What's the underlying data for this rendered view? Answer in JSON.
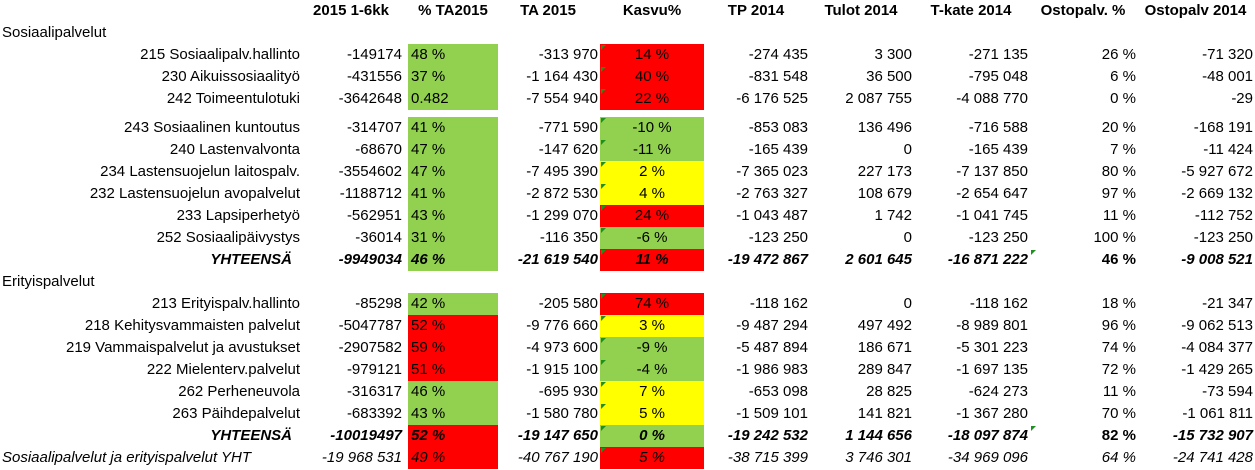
{
  "headers": [
    "2015 1-6kk",
    "% TA2015",
    "TA 2015",
    "Kasvu%",
    "TP 2014",
    "Tulot 2014",
    "T-kate 2014",
    "Ostopalv. %",
    "Ostopalv 2014"
  ],
  "colors": {
    "green": "#92d050",
    "red": "#ff0000",
    "yellow": "#ffff00"
  },
  "sections": [
    {
      "title": "Sosiaalipalvelut",
      "rows": [
        {
          "label": "215 Sosiaalipalv.hallinto",
          "v2015": "-149174",
          "pct_ta": "48 %",
          "pct_color": "green",
          "ta2015": "-313 970",
          "kasvu": "14 %",
          "kasvu_color": "red",
          "tp2014": "-274 435",
          "tulot": "3 300",
          "tkate": "-271 135",
          "ostopct": "26 %",
          "ostopalv": "-71 320"
        },
        {
          "label": "230 Aikuissosiaalityö",
          "v2015": "-431556",
          "pct_ta": "37 %",
          "pct_color": "green",
          "ta2015": "-1 164 430",
          "kasvu": "40 %",
          "kasvu_color": "red",
          "tp2014": "-831 548",
          "tulot": "36 500",
          "tkate": "-795 048",
          "ostopct": "6 %",
          "ostopalv": "-48 001"
        },
        {
          "label": "242 Toimeentulotuki",
          "v2015": "-3642648",
          "pct_ta": "0.482",
          "pct_color": "green",
          "ta2015": "-7 554 940",
          "kasvu": "22 %",
          "kasvu_color": "red",
          "tp2014": "-6 176 525",
          "tulot": "2 087 755",
          "tkate": "-4 088 770",
          "ostopct": "0 %",
          "ostopalv": "-29"
        },
        {
          "label": "243 Sosiaalinen kuntoutus",
          "v2015": "-314707",
          "pct_ta": "41 %",
          "pct_color": "green",
          "ta2015": "-771 590",
          "kasvu": "-10 %",
          "kasvu_color": "green",
          "tp2014": "-853 083",
          "tulot": "136 496",
          "tkate": "-716 588",
          "ostopct": "20 %",
          "ostopalv": "-168 191"
        },
        {
          "label": "240 Lastenvalvonta",
          "v2015": "-68670",
          "pct_ta": "47 %",
          "pct_color": "green",
          "ta2015": "-147 620",
          "kasvu": "-11 %",
          "kasvu_color": "green",
          "tp2014": "-165 439",
          "tulot": "0",
          "tkate": "-165 439",
          "ostopct": "7 %",
          "ostopalv": "-11 424"
        },
        {
          "label": "234 Lastensuojelun laitospalv.",
          "v2015": "-3554602",
          "pct_ta": "47 %",
          "pct_color": "green",
          "ta2015": "-7 495 390",
          "kasvu": "2 %",
          "kasvu_color": "yellow",
          "tp2014": "-7 365 023",
          "tulot": "227 173",
          "tkate": "-7 137 850",
          "ostopct": "80 %",
          "ostopalv": "-5 927 672"
        },
        {
          "label": "232 Lastensuojelun avopalvelut",
          "v2015": "-1188712",
          "pct_ta": "41 %",
          "pct_color": "green",
          "ta2015": "-2 872 530",
          "kasvu": "4 %",
          "kasvu_color": "yellow",
          "tp2014": "-2 763 327",
          "tulot": "108 679",
          "tkate": "-2 654 647",
          "ostopct": "97 %",
          "ostopalv": "-2 669 132"
        },
        {
          "label": "233 Lapsiperhetyö",
          "v2015": "-562951",
          "pct_ta": "43 %",
          "pct_color": "green",
          "ta2015": "-1 299 070",
          "kasvu": "24 %",
          "kasvu_color": "red",
          "tp2014": "-1 043 487",
          "tulot": "1 742",
          "tkate": "-1 041 745",
          "ostopct": "11 %",
          "ostopalv": "-112 752"
        },
        {
          "label": "252 Sosiaalipäivystys",
          "v2015": "-36014",
          "pct_ta": "31 %",
          "pct_color": "green",
          "ta2015": "-116 350",
          "kasvu": "-6 %",
          "kasvu_color": "green",
          "tp2014": "-123 250",
          "tulot": "0",
          "tkate": "-123 250",
          "ostopct": "100 %",
          "ostopalv": "-123 250"
        }
      ],
      "total": {
        "label": "YHTEENSÄ",
        "v2015": "-9949034",
        "pct_ta": "46 %",
        "pct_color": "green",
        "ta2015": "-21 619 540",
        "kasvu": "11 %",
        "kasvu_color": "red",
        "tp2014": "-19 472 867",
        "tulot": "2 601 645",
        "tkate": "-16 871 222",
        "ostopct": "46 %",
        "ostopalv": "-9 008 521"
      }
    },
    {
      "title": "Erityispalvelut",
      "rows": [
        {
          "label": "213 Erityispalv.hallinto",
          "v2015": "-85298",
          "pct_ta": "42 %",
          "pct_color": "green",
          "ta2015": "-205 580",
          "kasvu": "74 %",
          "kasvu_color": "red",
          "tp2014": "-118 162",
          "tulot": "0",
          "tkate": "-118 162",
          "ostopct": "18 %",
          "ostopalv": "-21 347"
        },
        {
          "label": "218 Kehitysvammaisten palvelut",
          "v2015": "-5047787",
          "pct_ta": "52 %",
          "pct_color": "red",
          "ta2015": "-9 776 660",
          "kasvu": "3 %",
          "kasvu_color": "yellow",
          "tp2014": "-9 487 294",
          "tulot": "497 492",
          "tkate": "-8 989 801",
          "ostopct": "96 %",
          "ostopalv": "-9 062 513"
        },
        {
          "label": "219 Vammaispalvelut ja avustukset",
          "v2015": "-2907582",
          "pct_ta": "59 %",
          "pct_color": "red",
          "ta2015": "-4 973 600",
          "kasvu": "-9 %",
          "kasvu_color": "green",
          "tp2014": "-5 487 894",
          "tulot": "186 671",
          "tkate": "-5 301 223",
          "ostopct": "74 %",
          "ostopalv": "-4 084 377"
        },
        {
          "label": "222 Mielenterv.palvelut",
          "v2015": "-979121",
          "pct_ta": "51 %",
          "pct_color": "red",
          "ta2015": "-1 915 100",
          "kasvu": "-4 %",
          "kasvu_color": "green",
          "tp2014": "-1 986 983",
          "tulot": "289 847",
          "tkate": "-1 697 135",
          "ostopct": "72 %",
          "ostopalv": "-1 429 265"
        },
        {
          "label": "262 Perheneuvola",
          "v2015": "-316317",
          "pct_ta": "46 %",
          "pct_color": "green",
          "ta2015": "-695 930",
          "kasvu": "7 %",
          "kasvu_color": "yellow",
          "tp2014": "-653 098",
          "tulot": "28 825",
          "tkate": "-624 273",
          "ostopct": "11 %",
          "ostopalv": "-73 594"
        },
        {
          "label": "263 Päihdepalvelut",
          "v2015": "-683392",
          "pct_ta": "43 %",
          "pct_color": "green",
          "ta2015": "-1 580 780",
          "kasvu": "5 %",
          "kasvu_color": "yellow",
          "tp2014": "-1 509 101",
          "tulot": "141 821",
          "tkate": "-1 367 280",
          "ostopct": "70 %",
          "ostopalv": "-1 061 811"
        }
      ],
      "total": {
        "label": "YHTEENSÄ",
        "v2015": "-10019497",
        "pct_ta": "52 %",
        "pct_color": "red",
        "ta2015": "-19 147 650",
        "kasvu": "0 %",
        "kasvu_color": "green",
        "tp2014": "-19 242 532",
        "tulot": "1 144 656",
        "tkate": "-18 097 874",
        "ostopct": "82 %",
        "ostopalv": "-15 732 907"
      }
    }
  ],
  "grand_total": {
    "label": "Sosiaalipalvelut ja erityispalvelut YHT",
    "v2015": "-19 968 531",
    "pct_ta": "49 %",
    "pct_color": "red",
    "ta2015": "-40 767 190",
    "kasvu": "5 %",
    "kasvu_color": "red",
    "tp2014": "-38 715 399",
    "tulot": "3 746 301",
    "tkate": "-34 969 096",
    "ostopct": "64 %",
    "ostopalv": "-24 741 428"
  }
}
